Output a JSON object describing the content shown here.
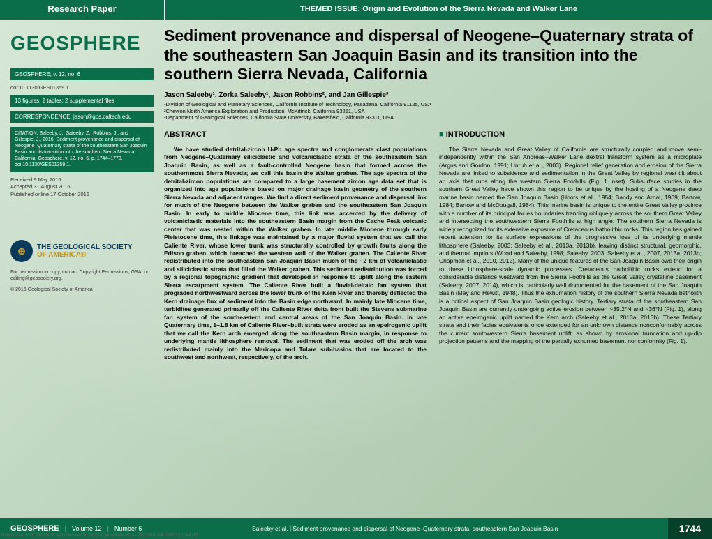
{
  "topbar": {
    "research_paper": "Research Paper",
    "themed_issue": "THEMED ISSUE:  Origin and Evolution of the Sierra Nevada and Walker Lane"
  },
  "sidebar": {
    "journal_title": "GEOSPHERE",
    "volume_info": "GEOSPHERE; v. 12, no. 6",
    "doi": "doi:10.1130/GES01359.1",
    "figures_info": "13 figures; 2 tables; 2 supplemental files",
    "correspondence": "CORRESPONDENCE:  jason@gps.caltech.edu",
    "citation": "CITATION: Saleeby, J., Saleeby, Z., Robbins, J., and Gillespie, J., 2016, Sediment provenance and dispersal of Neogene–Quaternary strata of the southeastern San Joaquin Basin and its transition into the southern Sierra Nevada, California: Geosphere, v. 12, no. 6, p. 1744–1773, doi:10.1130/GES01359.1.",
    "received": "Received 9 May 2016",
    "accepted": "Accepted 31 August 2016",
    "published": "Published online 17 October 2016",
    "gsa_line1": "THE GEOLOGICAL SOCIETY",
    "gsa_line2": "OF AMERICA®",
    "permissions": "For permission to copy, contact Copyright Permissions, GSA, or editing@geosociety.org.",
    "copyright": "© 2016 Geological Society of America"
  },
  "article": {
    "title": "Sediment provenance and dispersal of Neogene–Quaternary strata of the southeastern San Joaquin Basin and its transition into the southern Sierra Nevada, California",
    "authors": "Jason Saleeby¹, Zorka Saleeby¹, Jason Robbins², and Jan Gillespie³",
    "affil1": "¹Division of Geological and Planetary Sciences, California Institute of Technology, Pasadena, California 91125, USA",
    "affil2": "²Chevron North America Exploration and Production, McKittrick, California 93251, USA",
    "affil3": "³Department of Geological Sciences, California State University, Bakersfield, California 93311, USA",
    "abstract_heading": "ABSTRACT",
    "intro_heading": "INTRODUCTION",
    "abstract_text": "We have studied detrital-zircon U-Pb age spectra and conglomerate clast populations from Neogene–Quaternary siliciclastic and volcaniclastic strata of the southeastern San Joaquin Basin, as well as a fault-controlled Neogene basin that formed across the southernmost Sierra Nevada; we call this basin the Walker graben. The age spectra of the detrital-zircon populations are compared to a large basement zircon age data set that is organized into age populations based on major drainage basin geometry of the southern Sierra Nevada and adjacent ranges. We find a direct sediment provenance and dispersal link for much of the Neogene between the Walker graben and the southeastern San Joaquin Basin. In early to middle Miocene time, this link was accented by the delivery of volcaniclastic materials into the southeastern Basin margin from the Cache Peak volcanic center that was nested within the Walker graben. In late middle Miocene through early Pleistocene time, this linkage was maintained by a major fluvial system that we call the Caliente River, whose lower trunk was structurally controlled by growth faults along the Edison graben, which breached the western wall of the Walker graben. The Caliente River redistributed into the southeastern San Joaquin Basin much of the ~2 km of volcaniclastic and siliciclastic strata that filled the Walker graben. This sediment redistribution was forced by a regional topographic gradient that developed in response to uplift along the eastern Sierra escarpment system. The Caliente River built a fluvial-deltaic fan system that prograded northwestward across the lower trunk of the Kern River and thereby deflected the Kern drainage flux of sediment into the Basin edge northward. In mainly late Miocene time, turbidites generated primarily off the Caliente River delta front built the Stevens submarine fan system of the southeastern and central areas of the San Joaquin Basin. In late Quaternary time, 1–1.8 km of Caliente River–built strata were eroded as an epeirogenic uplift that we call the Kern arch emerged along the southeastern Basin margin, in response to underlying mantle lithosphere removal. The sediment that was eroded off the arch was redistributed mainly into the Maricopa and Tulare sub-basins that are located to the southwest and northwest, respectively, of the arch.",
    "intro_text": "The Sierra Nevada and Great Valley of California are structurally coupled and move semi-independently within the San Andreas–Walker Lane dextral transform system as a microplate (Argus and Gordon, 1991; Unruh et al., 2003). Regional relief generation and erosion of the Sierra Nevada are linked to subsidence and sedimentation in the Great Valley by regional west tilt about an axis that runs along the western Sierra Foothills (Fig. 1 inset). Subsurface studies in the southern Great Valley have shown this region to be unique by the hosting of a Neogene deep marine basin named the San Joaquin Basin (Hoots et al., 1954; Bandy and Arnal, 1969; Bartow, 1984; Bartow and McDougall, 1984). This marine basin is unique to the entire Great Valley province with a number of its principal facies boundaries trending obliquely across the southern Great Valley and intersecting the southwestern Sierra Foothills at high angle. The southern Sierra Nevada is widely recognized for its extensive exposure of Cretaceous batholithic rocks. This region has gained recent attention for its surface expressions of the progressive loss of its underlying mantle lithosphere (Saleeby, 2003; Saleeby et al., 2013a, 2013b), leaving distinct structural, geomorphic, and thermal imprints (Wood and Saleeby, 1998; Saleeby, 2003; Saleeby et al., 2007, 2013a, 2013b; Chapman et al., 2010, 2012). Many of the unique features of the San Joaquin Basin owe their origin to these lithosphere-scale dynamic processes. Cretaceous batholithic rocks extend for a considerable distance westward from the Sierra Foothills as the Great Valley crystalline basement (Saleeby, 2007, 2014), which is particularly well documented for the basement of the San Joaquin Basin (May and Hewitt, 1948). Thus the exhumation history of the southern Sierra Nevada batholith is a critical aspect of San Joaquin Basin geologic history. Tertiary strata of the southeastern San Joaquin Basin are currently undergoing active erosion between ~35.2°N and ~36°N (Fig. 1), along an active epeirogenic uplift named the Kern arch (Saleeby et al., 2013a, 2013b). These Tertiary strata and their facies equivalents once extended for an unknown distance nonconformably across the current southwestern Sierra basement uplift, as shown by erosional truncation and up-dip projection patterns and the mapping of the partially exhumed basement nonconformity (Fig. 1)."
  },
  "footer": {
    "journal": "GEOSPHERE",
    "volume": "Volume 12",
    "number": "Number 6",
    "running_head": "Saleeby et al.  |  Sediment provenance and dispersal of Neogene–Quaternary strata, southeastern San Joaquin Basin",
    "page_number": "1744",
    "download_line": "Downloaded from http://pubs.geoscienceworld.org/gsa/geosphere/article-pdf/12/6/1744/1000572/1744.pdf"
  },
  "colors": {
    "brand_green": "#0a6e4a",
    "dark_green": "#064028",
    "gsa_blue": "#0a3a5a",
    "gsa_gold": "#c8960a"
  }
}
